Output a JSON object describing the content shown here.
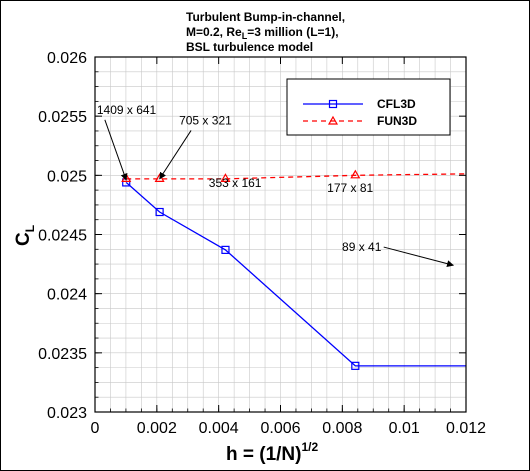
{
  "chart_data": {
    "type": "line",
    "title": {
      "line1": "Turbulent Bump-in-channel,",
      "line2_pre": "M=0.2, Re",
      "line2_sub": "L",
      "line2_post": "=3 million (L=1),",
      "line3": "BSL turbulence model"
    },
    "xlabel": {
      "main": "h = (1/N)",
      "sup": "1/2"
    },
    "ylabel": {
      "main": "C",
      "sub": "L"
    },
    "xlim": [
      0,
      0.012
    ],
    "ylim": [
      0.023,
      0.026
    ],
    "x_ticks": [
      0,
      0.002,
      0.004,
      0.006,
      0.008,
      0.01,
      0.012
    ],
    "x_tick_labels": [
      "0",
      "0.002",
      "0.004",
      "0.006",
      "0.008",
      "0.01",
      "0.012"
    ],
    "y_ticks": [
      0.023,
      0.0235,
      0.024,
      0.0245,
      0.025,
      0.0255,
      0.026
    ],
    "y_tick_labels": [
      "0.023",
      "0.0235",
      "0.024",
      "0.0245",
      "0.025",
      "0.0255",
      "0.026"
    ],
    "grid": true,
    "legend_position": "top-right",
    "series": [
      {
        "name": "CFL3D",
        "color": "#0000ff",
        "line_style": "solid",
        "marker": "square",
        "x": [
          0.00101,
          0.00209,
          0.00422,
          0.00842,
          0.0169
        ],
        "y": [
          0.02494,
          0.02469,
          0.02437,
          0.02339,
          0.02339
        ]
      },
      {
        "name": "FUN3D",
        "color": "#ff0000",
        "line_style": "dashed",
        "marker": "triangle",
        "x": [
          0.00101,
          0.00209,
          0.00422,
          0.00842,
          0.0169
        ],
        "y": [
          0.02497,
          0.02497,
          0.02497,
          0.025,
          0.02503
        ]
      }
    ],
    "annotations": [
      {
        "text": "1409 x 641",
        "x": 6e-05,
        "y": 0.02552,
        "arrow_to": [
          0.00101,
          0.02496
        ]
      },
      {
        "text": "705 x 321",
        "x": 0.00272,
        "y": 0.02543,
        "arrow_to": [
          0.00209,
          0.02497
        ]
      },
      {
        "text": "353 x 161",
        "x": 0.00368,
        "y": 0.0249,
        "arrow_to": null
      },
      {
        "text": "177 x 81",
        "x": 0.00751,
        "y": 0.02486,
        "arrow_to": null
      },
      {
        "text": "89 x 41",
        "x": 0.00799,
        "y": 0.02436,
        "arrow_to": [
          0.01159,
          0.02424
        ]
      }
    ]
  }
}
